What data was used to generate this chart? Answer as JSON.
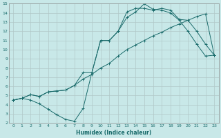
{
  "xlabel": "Humidex (Indice chaleur)",
  "bg_color": "#c8e8e8",
  "grid_color": "#b0c8c8",
  "line_color": "#1a6b6b",
  "xlim": [
    -0.5,
    23.5
  ],
  "ylim": [
    2,
    15
  ],
  "xticks": [
    0,
    1,
    2,
    3,
    4,
    5,
    6,
    7,
    8,
    9,
    10,
    11,
    12,
    13,
    14,
    15,
    16,
    17,
    18,
    19,
    20,
    21,
    22,
    23
  ],
  "yticks": [
    2,
    3,
    4,
    5,
    6,
    7,
    8,
    9,
    10,
    11,
    12,
    13,
    14,
    15
  ],
  "curve1_x": [
    0,
    1,
    2,
    3,
    4,
    5,
    6,
    7,
    8,
    9,
    10,
    11,
    12,
    13,
    14,
    15,
    16,
    17,
    18,
    19,
    20,
    21,
    22,
    23
  ],
  "curve1_y": [
    4.5,
    4.7,
    5.1,
    4.9,
    5.4,
    5.5,
    5.6,
    6.1,
    6.8,
    7.3,
    8.0,
    8.5,
    9.3,
    10.0,
    10.5,
    11.0,
    11.5,
    11.9,
    12.4,
    12.8,
    13.2,
    13.6,
    13.9,
    9.4
  ],
  "curve2_x": [
    0,
    1,
    2,
    3,
    4,
    5,
    6,
    7,
    8,
    9,
    10,
    11,
    12,
    13,
    14,
    15,
    16,
    17,
    18,
    19,
    20,
    21,
    22,
    23
  ],
  "curve2_y": [
    4.5,
    4.7,
    4.5,
    4.1,
    3.5,
    2.9,
    2.4,
    2.2,
    3.6,
    7.5,
    11.0,
    11.0,
    12.0,
    13.5,
    14.1,
    15.0,
    14.4,
    14.3,
    14.0,
    13.2,
    12.0,
    10.6,
    9.3,
    9.4
  ],
  "curve3_x": [
    0,
    1,
    2,
    3,
    4,
    5,
    6,
    7,
    8,
    9,
    10,
    11,
    12,
    13,
    14,
    15,
    16,
    17,
    18,
    19,
    20,
    21,
    22,
    23
  ],
  "curve3_y": [
    4.5,
    4.7,
    5.1,
    4.9,
    5.4,
    5.5,
    5.6,
    6.1,
    7.5,
    7.5,
    11.0,
    11.0,
    12.0,
    14.1,
    14.5,
    14.5,
    14.3,
    14.5,
    14.3,
    13.3,
    13.2,
    12.0,
    10.6,
    9.4
  ]
}
